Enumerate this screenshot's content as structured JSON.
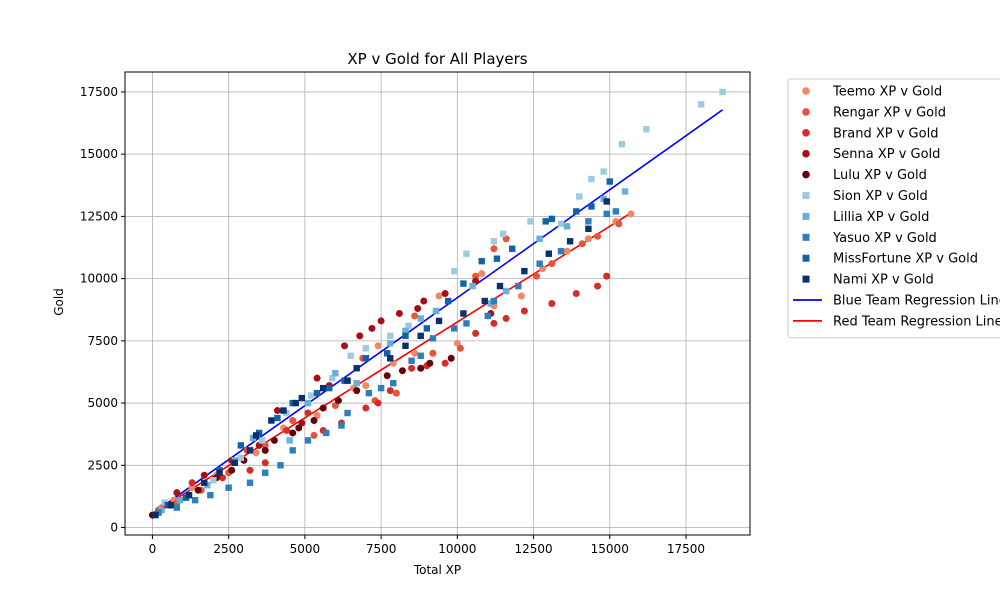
{
  "chart_data": {
    "type": "scatter",
    "title": "XP v Gold for All Players",
    "xlabel": "Total XP",
    "ylabel": "Gold",
    "xlim": [
      -900,
      19600
    ],
    "ylim": [
      -300,
      18300
    ],
    "xticks": [
      0,
      2500,
      5000,
      7500,
      10000,
      12500,
      15000,
      17500
    ],
    "yticks": [
      0,
      2500,
      5000,
      7500,
      10000,
      12500,
      15000,
      17500
    ],
    "grid": true,
    "legend_position": "outside-right",
    "series": [
      {
        "name": "Teemo XP v Gold",
        "marker": "circle",
        "color": "#f08866",
        "points": [
          [
            0,
            500
          ],
          [
            300,
            800
          ],
          [
            700,
            1100
          ],
          [
            1300,
            1600
          ],
          [
            2100,
            2100
          ],
          [
            2700,
            2600
          ],
          [
            3400,
            3000
          ],
          [
            4300,
            4000
          ],
          [
            5400,
            4500
          ],
          [
            6600,
            5600
          ],
          [
            7000,
            5700
          ],
          [
            7400,
            7300
          ],
          [
            7900,
            6600
          ],
          [
            8600,
            7000
          ],
          [
            9400,
            9300
          ],
          [
            10000,
            7400
          ],
          [
            10800,
            10200
          ],
          [
            11200,
            8900
          ],
          [
            12100,
            9300
          ],
          [
            12800,
            10400
          ],
          [
            13600,
            11100
          ],
          [
            14300,
            11600
          ],
          [
            15200,
            12300
          ],
          [
            15700,
            12600
          ]
        ]
      },
      {
        "name": "Rengar XP v Gold",
        "marker": "circle",
        "color": "#e8533b",
        "points": [
          [
            200,
            700
          ],
          [
            800,
            1000
          ],
          [
            1600,
            1500
          ],
          [
            2500,
            2200
          ],
          [
            3100,
            3100
          ],
          [
            3700,
            3300
          ],
          [
            4600,
            4300
          ],
          [
            5300,
            3700
          ],
          [
            6000,
            4900
          ],
          [
            6900,
            6800
          ],
          [
            7300,
            5100
          ],
          [
            8000,
            5400
          ],
          [
            8600,
            8500
          ],
          [
            9200,
            7000
          ],
          [
            10100,
            7200
          ],
          [
            10600,
            10100
          ],
          [
            11200,
            11200
          ],
          [
            11600,
            11600
          ],
          [
            12600,
            10100
          ],
          [
            13100,
            10600
          ],
          [
            14100,
            11400
          ],
          [
            14600,
            11700
          ],
          [
            15300,
            12200
          ]
        ]
      },
      {
        "name": "Brand XP v Gold",
        "marker": "circle",
        "color": "#d42d27",
        "points": [
          [
            400,
            900
          ],
          [
            1300,
            1800
          ],
          [
            2300,
            2000
          ],
          [
            3200,
            2300
          ],
          [
            3700,
            2600
          ],
          [
            4400,
            3900
          ],
          [
            5100,
            4600
          ],
          [
            5600,
            3900
          ],
          [
            6200,
            4200
          ],
          [
            7000,
            4800
          ],
          [
            7400,
            5000
          ],
          [
            7800,
            5500
          ],
          [
            8500,
            6400
          ],
          [
            9000,
            6500
          ],
          [
            9600,
            6600
          ],
          [
            10600,
            7800
          ],
          [
            11200,
            8200
          ],
          [
            11600,
            8400
          ],
          [
            12200,
            8700
          ],
          [
            13100,
            9000
          ],
          [
            13900,
            9400
          ],
          [
            14600,
            9700
          ],
          [
            14900,
            10100
          ]
        ]
      },
      {
        "name": "Senna XP v Gold",
        "marker": "circle",
        "color": "#a50f15",
        "points": [
          [
            800,
            1400
          ],
          [
            1700,
            2100
          ],
          [
            2600,
            2700
          ],
          [
            3500,
            3300
          ],
          [
            4100,
            4700
          ],
          [
            4900,
            4200
          ],
          [
            5400,
            6000
          ],
          [
            5800,
            5700
          ],
          [
            6300,
            7300
          ],
          [
            6800,
            7700
          ],
          [
            7200,
            8000
          ],
          [
            7500,
            8300
          ],
          [
            8100,
            8600
          ],
          [
            8700,
            8800
          ],
          [
            8900,
            9100
          ],
          [
            9600,
            9400
          ],
          [
            10600,
            9900
          ],
          [
            11100,
            8600
          ]
        ]
      },
      {
        "name": "Lulu XP v Gold",
        "marker": "circle",
        "color": "#67000d",
        "points": [
          [
            0,
            500
          ],
          [
            600,
            900
          ],
          [
            1500,
            1500
          ],
          [
            2100,
            2000
          ],
          [
            2600,
            2300
          ],
          [
            3000,
            2700
          ],
          [
            3700,
            3100
          ],
          [
            4000,
            3500
          ],
          [
            4600,
            3800
          ],
          [
            4800,
            4000
          ],
          [
            5300,
            4300
          ],
          [
            5600,
            4800
          ],
          [
            6100,
            5100
          ],
          [
            6700,
            5500
          ],
          [
            7700,
            6100
          ],
          [
            8200,
            6300
          ],
          [
            8800,
            6400
          ],
          [
            9100,
            6600
          ],
          [
            9800,
            6800
          ]
        ]
      },
      {
        "name": "Sion XP v Gold",
        "marker": "square",
        "color": "#9ecae1",
        "points": [
          [
            400,
            1000
          ],
          [
            1200,
            1300
          ],
          [
            2000,
            1900
          ],
          [
            2900,
            2800
          ],
          [
            3600,
            3500
          ],
          [
            4400,
            4600
          ],
          [
            5200,
            5300
          ],
          [
            5900,
            6000
          ],
          [
            6500,
            6900
          ],
          [
            7000,
            7200
          ],
          [
            7800,
            7700
          ],
          [
            8400,
            8100
          ],
          [
            9300,
            8700
          ],
          [
            9900,
            10300
          ],
          [
            10300,
            11000
          ],
          [
            11200,
            11500
          ],
          [
            11500,
            11800
          ],
          [
            12400,
            12300
          ],
          [
            13400,
            12200
          ],
          [
            14000,
            13300
          ],
          [
            14400,
            14000
          ],
          [
            14800,
            14300
          ],
          [
            15400,
            15400
          ],
          [
            16200,
            16000
          ],
          [
            18000,
            17000
          ],
          [
            18700,
            17500
          ]
        ]
      },
      {
        "name": "Lillia XP v Gold",
        "marker": "square",
        "color": "#6baed6",
        "points": [
          [
            300,
            700
          ],
          [
            900,
            1100
          ],
          [
            1800,
            1700
          ],
          [
            2700,
            2700
          ],
          [
            3300,
            3600
          ],
          [
            4500,
            3500
          ],
          [
            5100,
            5000
          ],
          [
            6000,
            6200
          ],
          [
            6700,
            5800
          ],
          [
            7800,
            7400
          ],
          [
            8300,
            7900
          ],
          [
            8800,
            8400
          ],
          [
            9300,
            8700
          ],
          [
            10500,
            9700
          ],
          [
            11100,
            9000
          ],
          [
            11600,
            9500
          ],
          [
            12700,
            11600
          ],
          [
            13600,
            12100
          ],
          [
            14800,
            13200
          ],
          [
            15500,
            13500
          ]
        ]
      },
      {
        "name": "Yasuo XP v Gold",
        "marker": "square",
        "color": "#2f7ebc",
        "points": [
          [
            200,
            600
          ],
          [
            800,
            800
          ],
          [
            1400,
            1100
          ],
          [
            1900,
            1300
          ],
          [
            2500,
            1600
          ],
          [
            3200,
            1800
          ],
          [
            3700,
            2200
          ],
          [
            4200,
            2500
          ],
          [
            4600,
            3100
          ],
          [
            5100,
            3500
          ],
          [
            5700,
            3800
          ],
          [
            6200,
            4100
          ],
          [
            6400,
            4600
          ],
          [
            7100,
            5400
          ],
          [
            7500,
            5600
          ],
          [
            7900,
            5800
          ],
          [
            8500,
            6700
          ],
          [
            8800,
            6900
          ],
          [
            9200,
            7600
          ],
          [
            9900,
            8000
          ],
          [
            10300,
            8200
          ],
          [
            11000,
            8500
          ],
          [
            11200,
            9100
          ],
          [
            12000,
            9700
          ],
          [
            12700,
            10600
          ],
          [
            13400,
            11100
          ],
          [
            14300,
            12300
          ],
          [
            14900,
            12600
          ],
          [
            15200,
            12700
          ]
        ]
      },
      {
        "name": "MissFortune XP v Gold",
        "marker": "square",
        "color": "#1361a9",
        "points": [
          [
            500,
            900
          ],
          [
            1100,
            1200
          ],
          [
            2200,
            2300
          ],
          [
            2900,
            3300
          ],
          [
            3500,
            3800
          ],
          [
            4100,
            4400
          ],
          [
            4600,
            5000
          ],
          [
            5400,
            5400
          ],
          [
            5800,
            5600
          ],
          [
            6300,
            5900
          ],
          [
            7000,
            6800
          ],
          [
            7700,
            7000
          ],
          [
            8300,
            7700
          ],
          [
            9000,
            8000
          ],
          [
            9700,
            9100
          ],
          [
            10200,
            9800
          ],
          [
            10800,
            10700
          ],
          [
            11300,
            10800
          ],
          [
            11800,
            11200
          ],
          [
            12900,
            12300
          ],
          [
            13100,
            12400
          ],
          [
            13900,
            12700
          ],
          [
            14400,
            12900
          ],
          [
            15000,
            13900
          ]
        ]
      },
      {
        "name": "Nami XP v Gold",
        "marker": "square",
        "color": "#08306b",
        "points": [
          [
            100,
            500
          ],
          [
            600,
            900
          ],
          [
            1200,
            1300
          ],
          [
            1700,
            1800
          ],
          [
            2200,
            2200
          ],
          [
            2700,
            2600
          ],
          [
            3200,
            3100
          ],
          [
            3400,
            3700
          ],
          [
            3900,
            4300
          ],
          [
            4300,
            4700
          ],
          [
            4700,
            5000
          ],
          [
            4900,
            5200
          ],
          [
            5600,
            5600
          ],
          [
            6400,
            5900
          ],
          [
            6700,
            6400
          ],
          [
            7800,
            6800
          ],
          [
            8300,
            7300
          ],
          [
            8800,
            7700
          ],
          [
            9400,
            8300
          ],
          [
            10200,
            8600
          ],
          [
            10900,
            9100
          ],
          [
            11400,
            9700
          ],
          [
            12200,
            10300
          ],
          [
            13000,
            11000
          ],
          [
            13700,
            11500
          ],
          [
            14300,
            12000
          ],
          [
            14900,
            13100
          ]
        ]
      }
    ],
    "regression_lines": [
      {
        "name": "Blue Team Regression Line",
        "color": "#0000ff",
        "x": [
          0,
          18700
        ],
        "y": [
          560,
          16780
        ]
      },
      {
        "name": "Red Team Regression Line",
        "color": "#ff0000",
        "x": [
          0,
          15700
        ],
        "y": [
          560,
          12640
        ]
      }
    ]
  }
}
